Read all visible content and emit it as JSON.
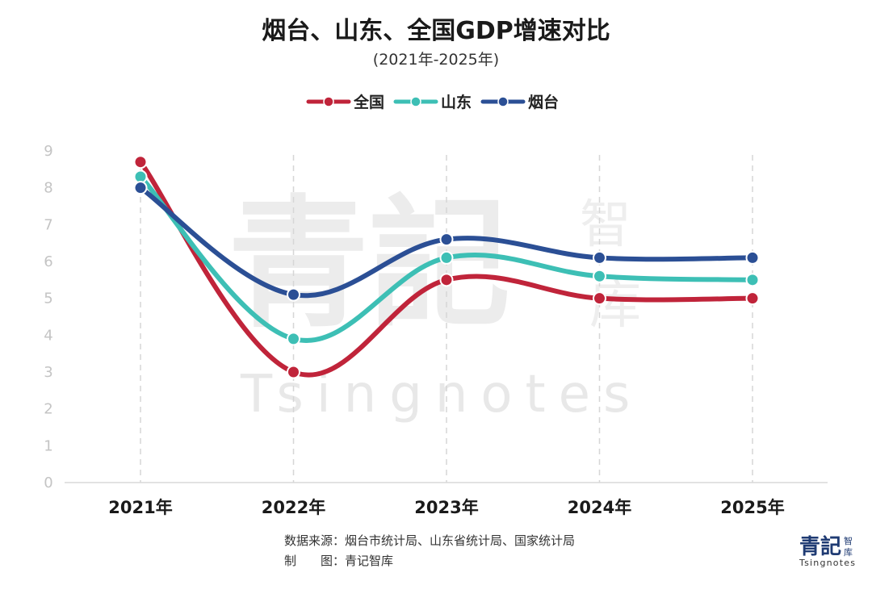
{
  "chart_data": {
    "type": "line",
    "title": "烟台、山东、全国GDP增速对比",
    "subtitle": "(2021年-2025年)",
    "categories": [
      "2021年",
      "2022年",
      "2023年",
      "2024年",
      "2025年"
    ],
    "series": [
      {
        "name": "全国",
        "color": "#c0243a",
        "values": [
          8.7,
          3.0,
          5.5,
          5.0,
          5.0
        ]
      },
      {
        "name": "山东",
        "color": "#3dbfb5",
        "values": [
          8.3,
          3.9,
          6.1,
          5.6,
          5.5
        ]
      },
      {
        "name": "烟台",
        "color": "#2b4f95",
        "values": [
          8.0,
          5.1,
          6.6,
          6.1,
          6.1
        ]
      }
    ],
    "ylim": [
      0,
      9
    ],
    "yticks": [
      "0",
      "1",
      "2",
      "3",
      "4",
      "5",
      "6",
      "7",
      "8",
      "9"
    ],
    "legend_position": "top-center"
  },
  "watermark": {
    "big_text": "青記",
    "side_text_1": "智",
    "side_text_2": "库",
    "latin_text": "Tsingnotes"
  },
  "footer": {
    "source_line": "数据来源：烟台市统计局、山东省统计局、国家统计局",
    "maker_line": "制　　图：青记智库"
  },
  "logo": {
    "main": "青記",
    "small_1": "智",
    "small_2": "库",
    "latin": "Tsingnotes"
  }
}
